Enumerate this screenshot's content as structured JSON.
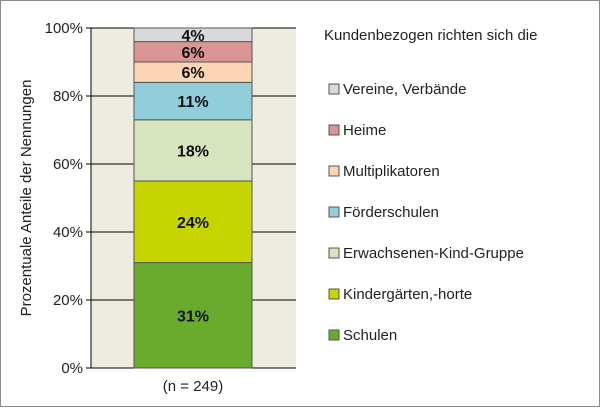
{
  "chart_data": {
    "type": "bar",
    "stacked": true,
    "percent_scale": true,
    "categories": [
      "(n = 249)"
    ],
    "series": [
      {
        "name": "Schulen",
        "values": [
          31
        ],
        "label": "31%",
        "color": "#6aab2e"
      },
      {
        "name": "Kindergärten,-horte",
        "values": [
          24
        ],
        "label": "24%",
        "color": "#c6d400"
      },
      {
        "name": "Erwachsenen-Kind-Gruppe",
        "values": [
          18
        ],
        "label": "18%",
        "color": "#d7e4bd"
      },
      {
        "name": "Förderschulen",
        "values": [
          11
        ],
        "label": "11%",
        "color": "#92cddc"
      },
      {
        "name": "Multiplikatoren",
        "values": [
          6
        ],
        "label": "6%",
        "color": "#fcd5b4"
      },
      {
        "name": "Heime",
        "values": [
          6
        ],
        "label": "6%",
        "color": "#d99694"
      },
      {
        "name": "Vereine, Verbände",
        "values": [
          4
        ],
        "label": "4%",
        "color": "#d9d9d9"
      }
    ],
    "ylabel": "Prozentuale Anteile der Nennungen",
    "ylim": [
      0,
      100
    ],
    "yticks": [
      "0%",
      "20%",
      "40%",
      "60%",
      "80%",
      "100%"
    ],
    "grid": true,
    "legend_title": "Kundenbezogen richten sich die",
    "legend_position": "right",
    "plot_background": "#eeece1"
  }
}
